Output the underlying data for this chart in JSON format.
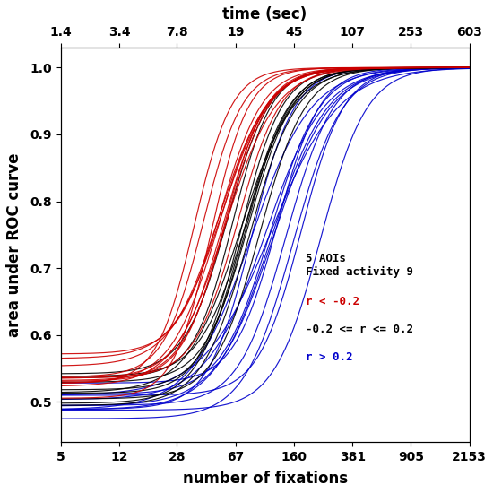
{
  "title_top": "time (sec)",
  "xlabel": "number of fixations",
  "ylabel": "area under ROC curve",
  "annotation_line1": "5 AOIs",
  "annotation_line2": "Fixed activity 9",
  "legend_red": "r < -0.2",
  "legend_black": "-0.2 <= r <= 0.2",
  "legend_blue": "r > 0.2",
  "x_ticks_bottom": [
    5,
    12,
    28,
    67,
    160,
    381,
    905,
    2153
  ],
  "x_ticks_top": [
    1.4,
    3.4,
    7.8,
    19,
    45,
    107,
    253,
    603
  ],
  "ylim": [
    0.44,
    1.03
  ],
  "xlim_log": [
    5,
    2153
  ],
  "y_ticks": [
    0.5,
    0.6,
    0.7,
    0.8,
    0.9,
    1.0
  ],
  "color_red": "#cc0000",
  "color_black": "#000000",
  "color_blue": "#0000cc",
  "figsize": [
    5.5,
    5.5
  ],
  "dpi": 100
}
